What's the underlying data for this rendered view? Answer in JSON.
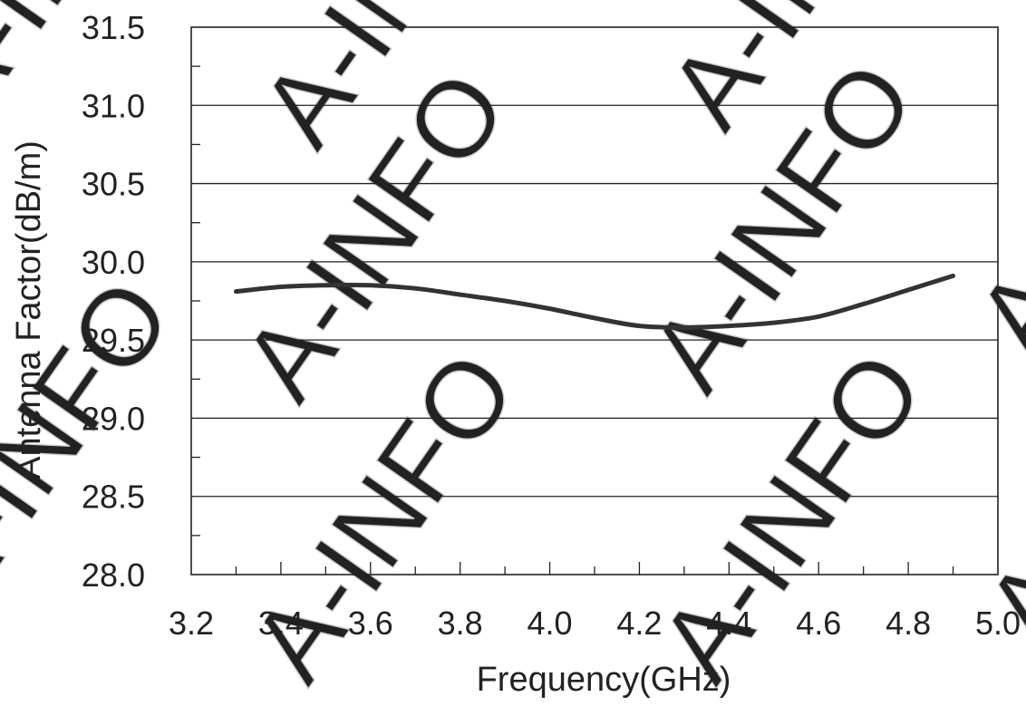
{
  "watermark": {
    "text": "A-INFO",
    "color": "#c9c9c9"
  },
  "chart_data": {
    "type": "line",
    "title": "",
    "xlabel": "Frequency(GHz)",
    "ylabel": "Antenna Factor(dB/m)",
    "xlim": [
      3.2,
      5.0
    ],
    "ylim": [
      28.0,
      31.5
    ],
    "x_ticks": [
      "3.2",
      "3.4",
      "3.6",
      "3.8",
      "4.0",
      "4.2",
      "4.4",
      "4.6",
      "4.8",
      "5.0"
    ],
    "y_ticks": [
      "28.0",
      "28.5",
      "29.0",
      "29.5",
      "30.0",
      "30.5",
      "31.0",
      "31.5"
    ],
    "x_minor_step": 0.1,
    "y_minor_step": 0.25,
    "grid": "horizontal major lines",
    "legend": "none",
    "line_color": "#333333",
    "grid_color": "#222222",
    "series": [
      {
        "x": [
          3.3,
          3.4,
          3.5,
          3.6,
          3.7,
          3.8,
          3.9,
          4.0,
          4.1,
          4.2,
          4.3,
          4.4,
          4.5,
          4.6,
          4.7,
          4.8,
          4.9
        ],
        "y": [
          29.81,
          29.84,
          29.85,
          29.85,
          29.83,
          29.79,
          29.75,
          29.7,
          29.64,
          29.59,
          29.58,
          29.59,
          29.61,
          29.65,
          29.73,
          29.82,
          29.91
        ]
      }
    ]
  }
}
